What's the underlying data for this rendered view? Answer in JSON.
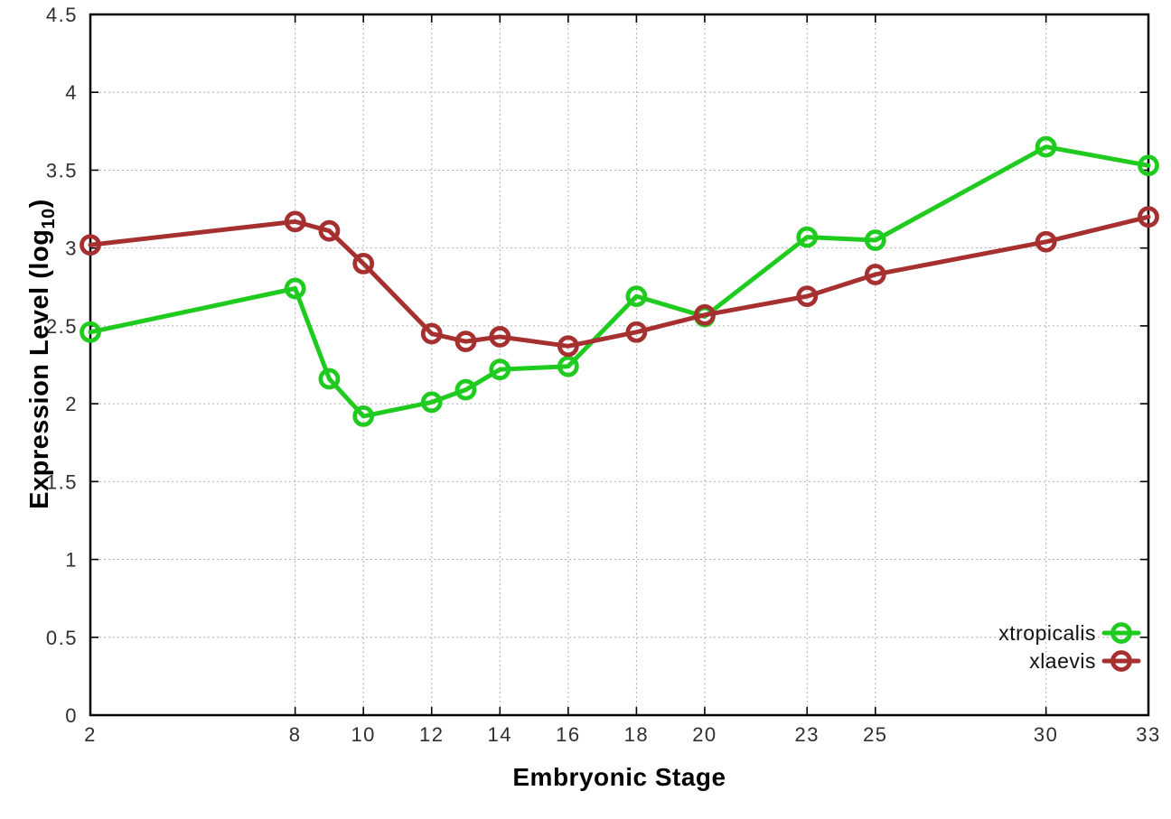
{
  "chart_data": {
    "type": "line",
    "title": "",
    "xlabel": "Embryonic Stage",
    "ylabel": {
      "prefix": "Expression Level (log",
      "sub": "10",
      "suffix": ")"
    },
    "xlim": [
      2,
      33
    ],
    "ylim": [
      0,
      4.5
    ],
    "x_ticks": [
      2,
      8,
      10,
      12,
      14,
      16,
      18,
      20,
      23,
      25,
      30,
      33
    ],
    "y_ticks": [
      "0",
      "0.5",
      "1",
      "1.5",
      "2",
      "2.5",
      "3",
      "3.5",
      "4",
      "4.5"
    ],
    "grid": true,
    "legend_position": "bottom-right-inside",
    "x": [
      2,
      8,
      9,
      10,
      12,
      13,
      14,
      16,
      18,
      20,
      23,
      25,
      30,
      33
    ],
    "series": [
      {
        "name": "xtropicalis",
        "color": "#20cb20",
        "marker": "open-circle",
        "values": [
          2.46,
          2.74,
          2.16,
          1.92,
          2.01,
          2.09,
          2.22,
          2.24,
          2.69,
          2.56,
          3.07,
          3.05,
          3.65,
          3.53
        ]
      },
      {
        "name": "xlaevis",
        "color": "#a63030",
        "marker": "open-circle",
        "values": [
          3.02,
          3.17,
          3.11,
          2.9,
          2.45,
          2.4,
          2.43,
          2.37,
          2.46,
          2.57,
          2.69,
          2.83,
          3.04,
          3.2
        ]
      }
    ]
  },
  "style_colors": {
    "border": "#000000",
    "grid": "#b0b0b0",
    "tick_label": "#2f2f2f",
    "background": "#ffffff"
  }
}
